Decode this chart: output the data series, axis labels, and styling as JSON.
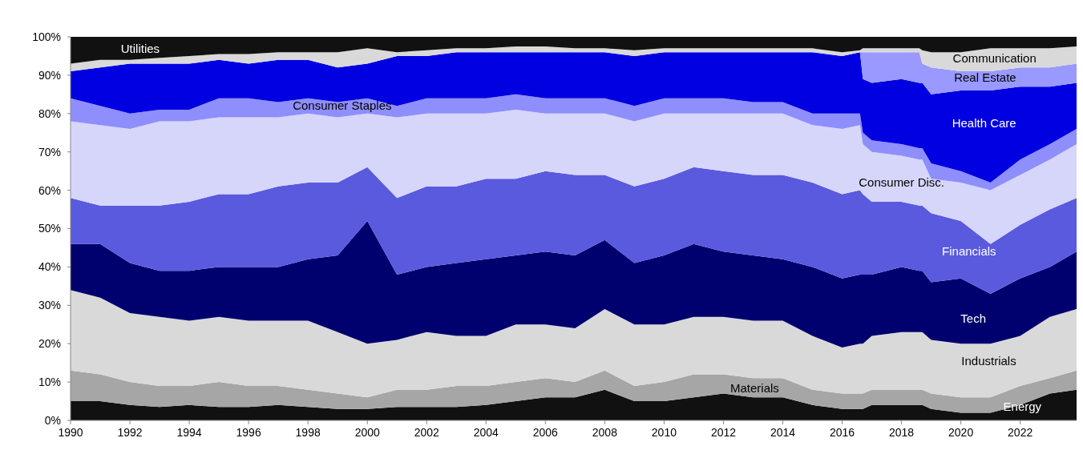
{
  "chart_data": {
    "type": "area",
    "stacked": true,
    "legend": false,
    "grid": false,
    "x": [
      1990,
      1991,
      1992,
      1993,
      1994,
      1995,
      1996,
      1997,
      1998,
      1999,
      2000,
      2001,
      2002,
      2003,
      2004,
      2005,
      2006,
      2007,
      2008,
      2009,
      2010,
      2011,
      2012,
      2013,
      2014,
      2015,
      2016,
      2016.6,
      2016.7,
      2017,
      2018,
      2018.6,
      2018.7,
      2019,
      2020,
      2021,
      2022,
      2023,
      2023.9
    ],
    "xlim": [
      1990,
      2023.9
    ],
    "xticks": [
      1990,
      1992,
      1994,
      1996,
      1998,
      2000,
      2002,
      2004,
      2006,
      2008,
      2010,
      2012,
      2014,
      2016,
      2018,
      2020,
      2022
    ],
    "ylim": [
      0,
      100
    ],
    "yticks": [
      {
        "value": 0,
        "label": "0%"
      },
      {
        "value": 10,
        "label": "10%"
      },
      {
        "value": 20,
        "label": "20%"
      },
      {
        "value": 30,
        "label": "30%"
      },
      {
        "value": 40,
        "label": "40%"
      },
      {
        "value": 50,
        "label": "50%"
      },
      {
        "value": 60,
        "label": "60%"
      },
      {
        "value": 70,
        "label": "70%"
      },
      {
        "value": 80,
        "label": "80%"
      },
      {
        "value": 90,
        "label": "90%"
      },
      {
        "value": 100,
        "label": "100%"
      }
    ],
    "series": [
      {
        "name": "Energy",
        "color": "#111111",
        "values": [
          5,
          5,
          4,
          3.5,
          4,
          3.5,
          3.5,
          4,
          3.5,
          3,
          3,
          3.5,
          3.5,
          3.5,
          4,
          5,
          6,
          6,
          8,
          5,
          5,
          6,
          7,
          6,
          6,
          4,
          3,
          3,
          3,
          4,
          4,
          4,
          4,
          3,
          2,
          2,
          4,
          7,
          8
        ]
      },
      {
        "name": "Materials",
        "color": "#a6a6a6",
        "values": [
          8,
          7,
          6,
          5.5,
          5,
          6.5,
          5.5,
          5,
          4.5,
          4,
          3,
          4.5,
          4.5,
          5.5,
          5,
          5,
          5,
          4,
          5,
          4,
          5,
          6,
          5,
          5,
          5,
          4,
          4,
          4,
          4,
          4,
          4,
          4,
          4,
          4,
          4,
          4,
          5,
          4,
          5
        ]
      },
      {
        "name": "Industrials",
        "color": "#d9d9d9",
        "values": [
          21,
          20,
          18,
          18,
          17,
          17,
          17,
          17,
          18,
          16,
          14,
          13,
          15,
          13,
          13,
          15,
          14,
          14,
          16,
          16,
          15,
          15,
          15,
          15,
          15,
          14,
          12,
          13,
          13,
          14,
          15,
          15,
          15,
          14,
          14,
          14,
          13,
          16,
          16
        ]
      },
      {
        "name": "Tech",
        "color": "#00006e",
        "values": [
          12,
          14,
          13,
          12,
          13,
          13,
          14,
          14,
          16,
          20,
          32,
          17,
          17,
          19,
          20,
          18,
          19,
          19,
          18,
          16,
          18,
          19,
          17,
          17,
          16,
          18,
          18,
          18,
          18,
          16,
          17,
          16,
          16,
          15,
          17,
          13,
          15,
          13,
          15
        ]
      },
      {
        "name": "Financials",
        "color": "#5a5adf",
        "values": [
          12,
          10,
          15,
          17,
          18,
          19,
          19,
          21,
          20,
          19,
          14,
          20,
          21,
          20,
          21,
          20,
          21,
          21,
          17,
          20,
          20,
          20,
          21,
          21,
          22,
          22,
          22,
          22,
          21,
          19,
          17,
          17,
          17,
          18,
          15,
          13,
          14,
          15,
          14
        ]
      },
      {
        "name": "Consumer Disc.",
        "color": "#d6d6fb",
        "values": [
          20,
          21,
          20,
          22,
          21,
          20,
          20,
          18,
          18,
          17,
          14,
          21,
          19,
          19,
          17,
          18,
          15,
          16,
          16,
          17,
          17,
          14,
          15,
          16,
          16,
          15,
          17,
          17,
          13,
          13,
          12,
          12,
          12,
          9,
          10,
          14,
          13,
          13,
          14
        ]
      },
      {
        "name": "Consumer Staples",
        "color": "#8e8efc",
        "values": [
          6,
          5,
          4,
          3,
          3,
          5,
          5,
          4,
          4,
          4,
          4,
          3,
          4,
          4,
          4,
          4,
          4,
          4,
          4,
          4,
          4,
          4,
          4,
          3,
          3,
          3,
          4,
          3,
          3,
          3,
          3,
          3,
          3,
          4,
          3,
          2,
          4,
          4,
          4
        ]
      },
      {
        "name": "Health Care",
        "color": "#0000e0",
        "values": [
          7,
          10,
          13,
          12,
          12,
          10,
          9,
          11,
          10,
          9,
          9,
          13,
          11,
          12,
          12,
          11,
          12,
          12,
          12,
          13,
          12,
          12,
          12,
          13,
          13,
          16,
          15,
          16,
          14,
          15,
          17,
          17,
          17,
          18,
          21,
          24,
          19,
          15,
          12
        ]
      },
      {
        "name": "Real Estate",
        "color": "#9999ff",
        "values": [
          0,
          0,
          0,
          0,
          0,
          0,
          0,
          0,
          0,
          0,
          0,
          0,
          0,
          0,
          0,
          0,
          0,
          0,
          0,
          0,
          0,
          0,
          0,
          0,
          0,
          0,
          0,
          0,
          7,
          8,
          7,
          8,
          5,
          7,
          5,
          5,
          5,
          5,
          5
        ]
      },
      {
        "name": "Communication",
        "color": "#d9d9d9",
        "values": [
          2,
          2,
          1,
          1.5,
          2,
          1.5,
          2.5,
          2,
          2,
          4,
          4,
          1,
          1.5,
          1,
          1,
          1.5,
          1.5,
          1,
          1,
          1.5,
          1,
          1,
          1,
          1,
          1,
          1,
          1,
          0.5,
          1,
          1,
          1,
          1,
          3.5,
          4,
          5,
          6,
          5,
          5,
          4.5
        ]
      },
      {
        "name": "Utilities",
        "color": "#111111",
        "values": [
          7,
          6,
          6,
          5.5,
          5,
          4.5,
          4.5,
          4,
          4,
          4,
          3,
          4,
          3.5,
          3,
          3,
          2.5,
          2.5,
          3,
          3,
          3.5,
          3,
          3,
          3,
          3,
          3,
          3,
          4,
          3.5,
          3,
          3,
          3,
          3,
          3.5,
          4,
          4,
          3,
          3,
          3,
          2.5
        ]
      }
    ]
  }
}
